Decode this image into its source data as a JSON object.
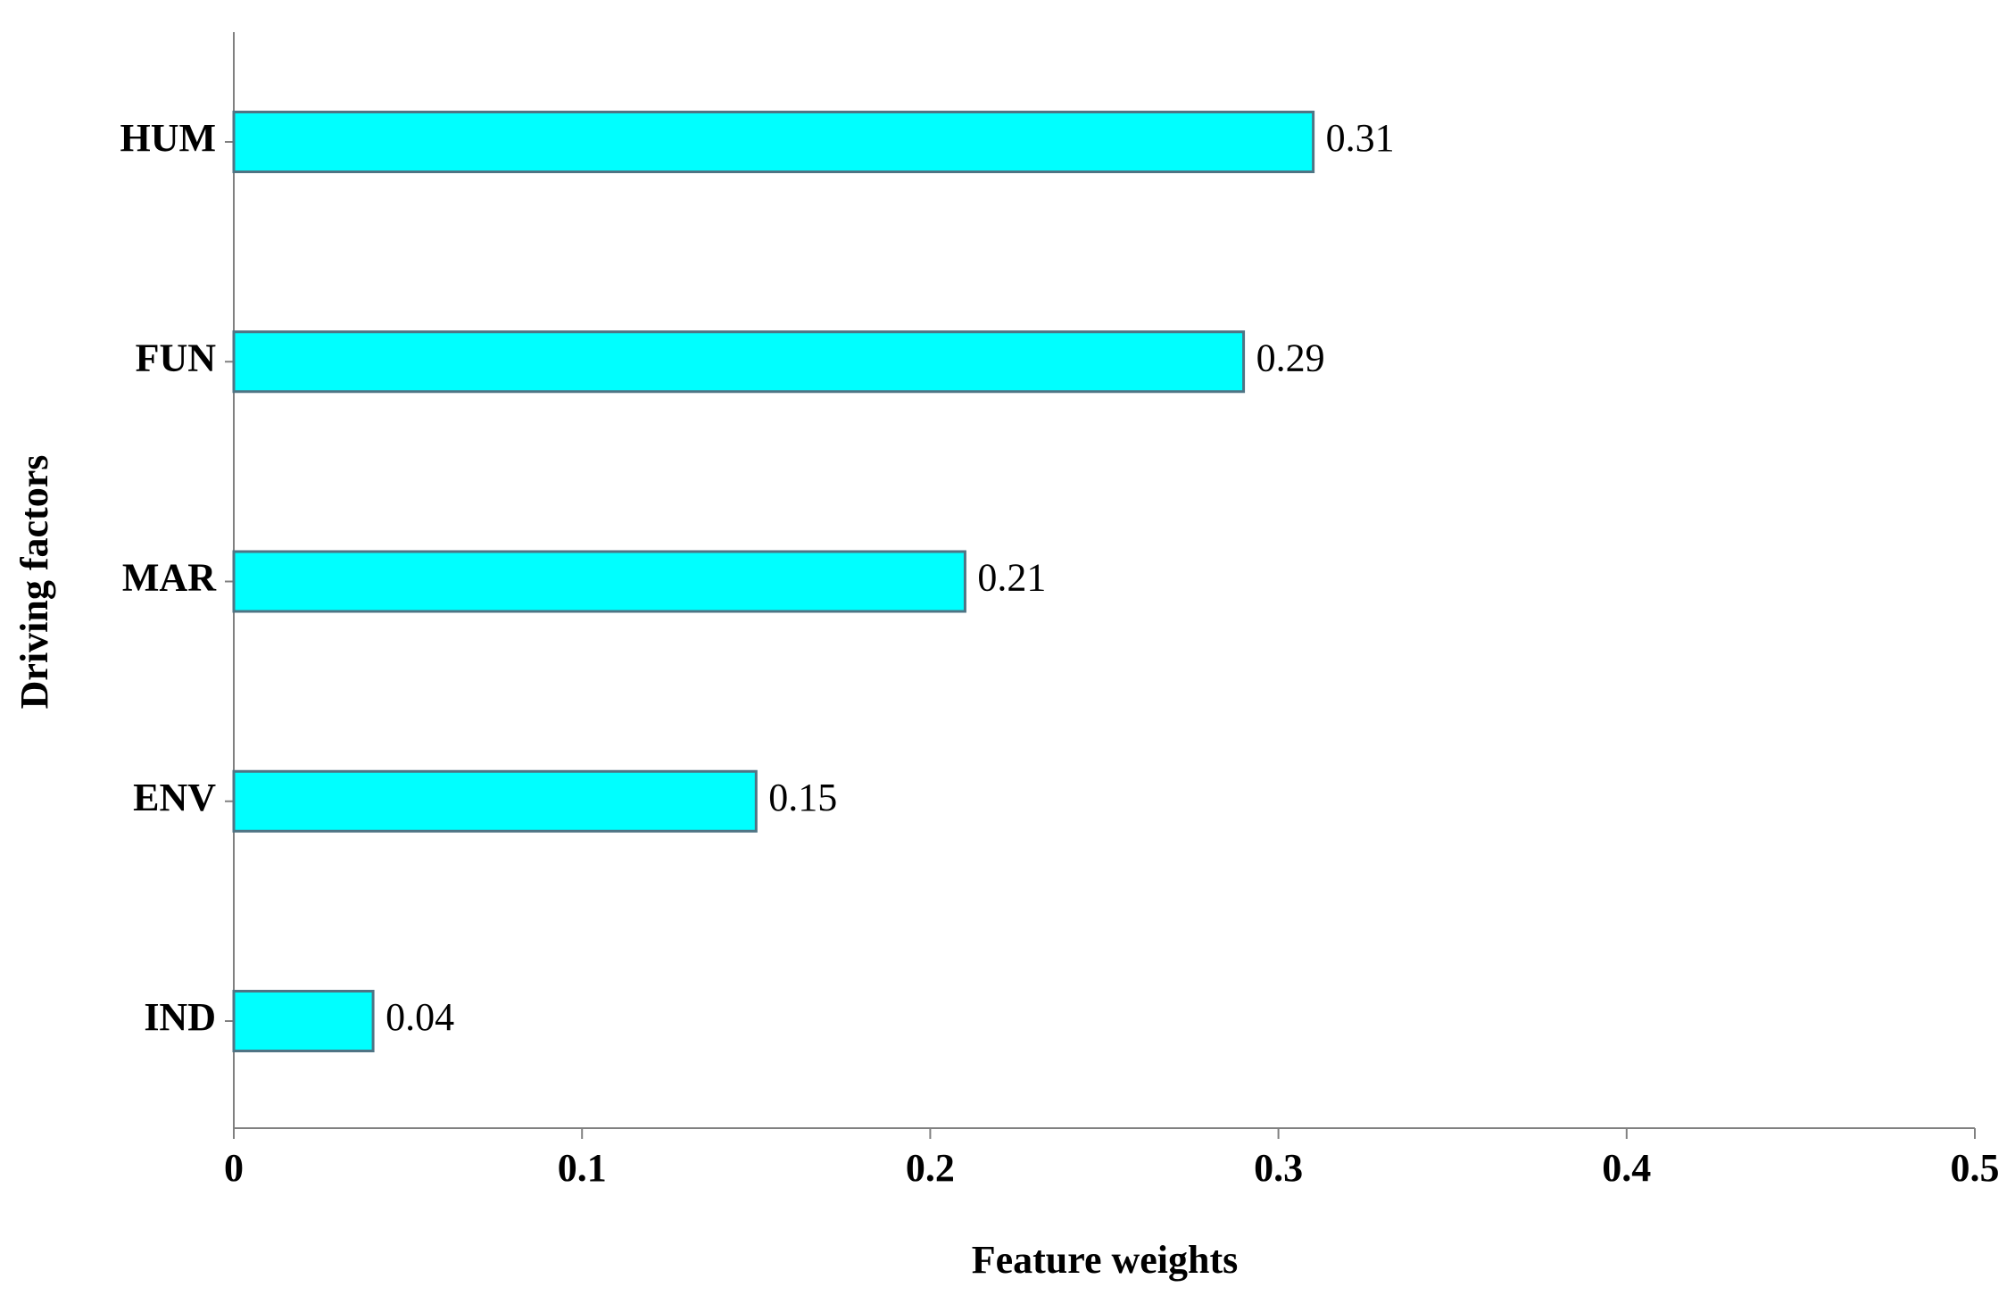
{
  "chart_data": {
    "type": "bar",
    "orientation": "horizontal",
    "x_label": "Feature weights",
    "y_label": "Driving factors",
    "categories": [
      "HUM",
      "FUN",
      "MAR",
      "ENV",
      "IND"
    ],
    "values": [
      0.31,
      0.29,
      0.21,
      0.15,
      0.04
    ],
    "color": "#00ffff",
    "xlim": [
      0,
      0.5
    ],
    "xticks": [
      0,
      0.1,
      0.2,
      0.3,
      0.4,
      0.5
    ],
    "grid": false,
    "data_labels": true
  }
}
